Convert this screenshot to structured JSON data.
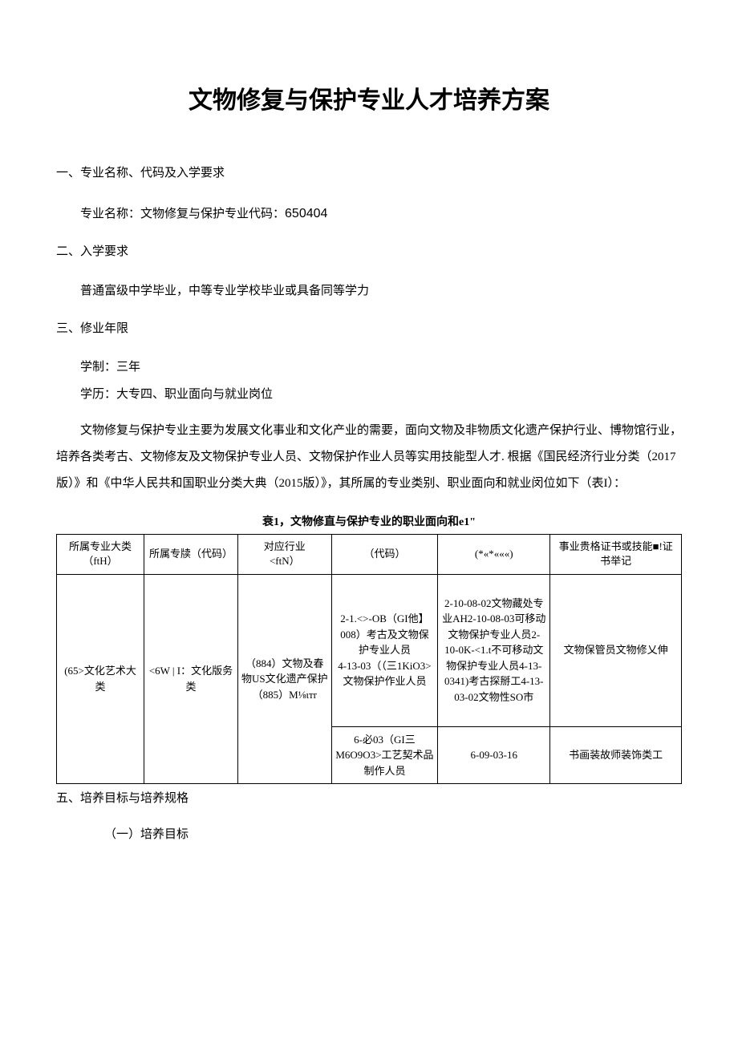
{
  "title": "文物修复与保护专业人才培养方案",
  "sections": {
    "s1": {
      "heading": "一、专业名称、代码及入学要求",
      "line1_prefix": "专业名称：文物修复与保护专业代码：",
      "code": "650404"
    },
    "s2": {
      "heading": "二、入学要求",
      "line1": "普通富级中学毕业，中等专业学校毕业或具备同等学力"
    },
    "s3": {
      "heading": "三、修业年限",
      "line1": "学制：三年",
      "line2": "学历：大专四、职业面向与就业岗位"
    },
    "body": {
      "p1": "文物修复与保护专业主要为发展文化事业和文化产业的需要，面向文物及非物质文化遗产保护行业、博物馆行业，培养各类考古、文物修友及文物保护专业人员、文物保护作业人员等实用技能型人才. 根据《国民经济行业分类（2017版）》和《中华人民共和国职业分类大典（2015版）》，其所属的专业类别、职业面向和就业闵位如下（表I）："
    },
    "table": {
      "caption": "衰1，文物修直与保护专业的职业面向和e1\"",
      "headers": {
        "h1": "所属专业大类  （ftH）",
        "h2": "所属专牍（代码）",
        "h3": "对应行业\n<ftN）",
        "h4": "（代码）",
        "h5": "(*«*«««)",
        "h6": "事业贵格证书或技能■!证书举记"
      },
      "rows": {
        "r1c1": "(65>文化艺术大类",
        "r1c2": "<6W | I：文化版务类",
        "r1c3": "（884）文物及春物US文化遗产保护（885）M⅛ιтr",
        "r1c4": "2-1.<>-OB（GI他】008）考古及文物保护专业人员\n4-13-03（（三1KiO3>文物保护作业人员",
        "r1c5": "2-10-08-02文物藏处专业AH2-10-08-03可移动文物保护专业人员2-10-0K-<1.t不可移动文物保护专业人员4-13-0341)考古探掰工4-13-03-02文物性SO市",
        "r1c6": "文物保管员文物修乂伸",
        "r2c4": "6-必03（GI三M6O9O3>工艺契术品制作人员",
        "r2c5": "6-09-03-16",
        "r2c6": "书画装故师装饰类工"
      }
    },
    "s5": {
      "heading": "五、培养目标与培养规格",
      "sub1": "（一）培养目标"
    }
  }
}
